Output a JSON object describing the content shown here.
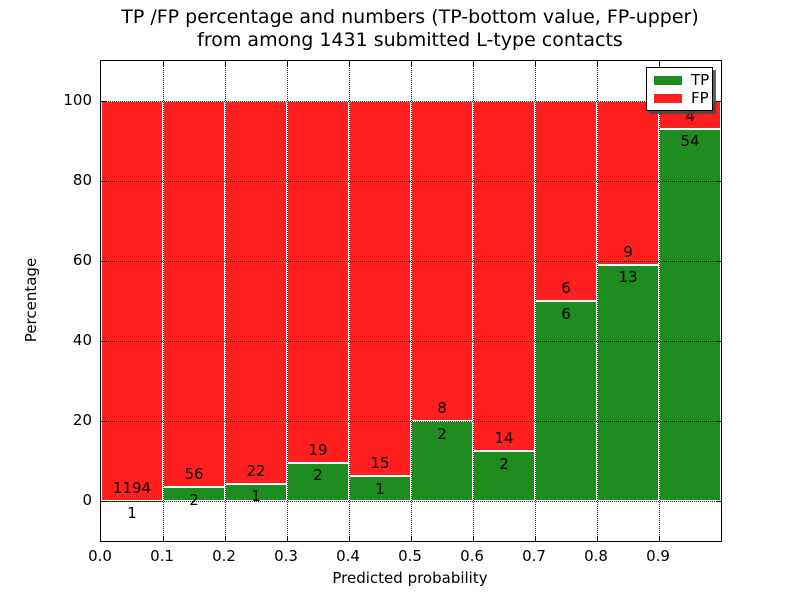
{
  "title_line1": "TP /FP percentage and numbers (TP-bottom value, FP-upper)",
  "title_line2": "from among 1431 submitted L-type contacts",
  "chart_data": {
    "type": "bar",
    "stacked": true,
    "total_contacts": 1431,
    "bin_edges": [
      0.0,
      0.1,
      0.2,
      0.3,
      0.4,
      0.5,
      0.6,
      0.7,
      0.8,
      0.9,
      1.0
    ],
    "categories": [
      "0.0-0.1",
      "0.1-0.2",
      "0.2-0.3",
      "0.3-0.4",
      "0.4-0.5",
      "0.5-0.6",
      "0.6-0.7",
      "0.7-0.8",
      "0.8-0.9",
      "0.9-1.0"
    ],
    "series": [
      {
        "name": "TP",
        "color": "#1e8c1e",
        "counts": [
          1,
          2,
          1,
          2,
          1,
          2,
          2,
          6,
          13,
          54
        ]
      },
      {
        "name": "FP",
        "color": "#ff1f1f",
        "counts": [
          1194,
          56,
          22,
          19,
          15,
          8,
          14,
          6,
          9,
          4
        ]
      }
    ],
    "tp_percent": [
      0.08,
      3.45,
      4.35,
      9.52,
      6.25,
      20.0,
      12.5,
      50.0,
      59.09,
      93.1
    ],
    "xlabel": "Predicted probability",
    "ylabel": "Percentage",
    "xlim": [
      0.0,
      1.0
    ],
    "ylim": [
      -10,
      110
    ],
    "xticks": [
      "0.0",
      "0.1",
      "0.2",
      "0.3",
      "0.4",
      "0.5",
      "0.6",
      "0.7",
      "0.8",
      "0.9"
    ],
    "xtick_values": [
      0.0,
      0.1,
      0.2,
      0.3,
      0.4,
      0.5,
      0.6,
      0.7,
      0.8,
      0.9
    ],
    "yticks": [
      0,
      20,
      40,
      60,
      80,
      100
    ],
    "grid": {
      "style": "dotted",
      "color": "#000000"
    },
    "legend": {
      "position": "upper-right",
      "entries": [
        {
          "label": "TP",
          "color": "#1e8c1e"
        },
        {
          "label": "FP",
          "color": "#ff1f1f"
        }
      ]
    }
  }
}
